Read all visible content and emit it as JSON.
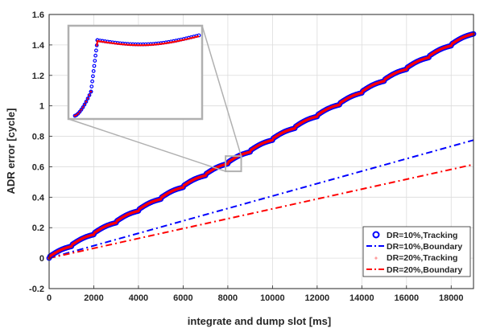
{
  "chart_data": {
    "type": "scatter",
    "title": "",
    "xlabel": "integrate and dump slot [ms]",
    "ylabel": "ADR error [cycle]",
    "xlim": [
      0,
      19000
    ],
    "ylim": [
      -0.2,
      1.6
    ],
    "xticks": [
      0,
      2000,
      4000,
      6000,
      8000,
      10000,
      12000,
      14000,
      16000,
      18000
    ],
    "xtick_labels": [
      "0",
      "2000",
      "4000",
      "6000",
      "8000",
      "10000",
      "12000",
      "14000",
      "16000",
      "18000"
    ],
    "yticks": [
      -0.2,
      0,
      0.2,
      0.4,
      0.6,
      0.8,
      1,
      1.2,
      1.4,
      1.6
    ],
    "ytick_labels": [
      "-0.2",
      "0",
      "0.2",
      "0.4",
      "0.6",
      "0.8",
      "1",
      "1.2",
      "1.4",
      "1.6"
    ],
    "grid": true,
    "legend_position": "bottom-right",
    "tracking_model": {
      "period_ms": 1000,
      "step_per_period": 0.0775,
      "period_fraction_of_rise": 0.03,
      "ripple_amplitude": 0.015,
      "x_start": 0,
      "x_end": 19000
    },
    "series": [
      {
        "name": "DR=10%,Tracking",
        "kind": "markers",
        "color": "#0000ff",
        "description_points": [
          [
            0,
            0.0
          ],
          [
            1000,
            0.078
          ],
          [
            2000,
            0.155
          ],
          [
            3000,
            0.233
          ],
          [
            4000,
            0.31
          ],
          [
            5000,
            0.388
          ],
          [
            6000,
            0.465
          ],
          [
            7000,
            0.543
          ],
          [
            8000,
            0.62
          ],
          [
            9000,
            0.698
          ],
          [
            10000,
            0.775
          ],
          [
            11000,
            0.853
          ],
          [
            12000,
            0.93
          ],
          [
            13000,
            1.008
          ],
          [
            14000,
            1.085
          ],
          [
            15000,
            1.163
          ],
          [
            16000,
            1.24
          ],
          [
            17000,
            1.318
          ],
          [
            18000,
            1.395
          ],
          [
            19000,
            1.48
          ]
        ]
      },
      {
        "name": "DR=10%,Boundary",
        "kind": "dashdot",
        "color": "#0000ff",
        "x": [
          0,
          19000
        ],
        "y": [
          0.0,
          0.775
        ]
      },
      {
        "name": "DR=20%,Tracking",
        "kind": "markers",
        "color": "#ff0000",
        "description_points": [
          [
            0,
            0.0
          ],
          [
            1000,
            0.078
          ],
          [
            2000,
            0.155
          ],
          [
            3000,
            0.233
          ],
          [
            4000,
            0.31
          ],
          [
            5000,
            0.388
          ],
          [
            6000,
            0.465
          ],
          [
            7000,
            0.543
          ],
          [
            8000,
            0.62
          ],
          [
            9000,
            0.698
          ],
          [
            10000,
            0.775
          ],
          [
            11000,
            0.853
          ],
          [
            12000,
            0.93
          ],
          [
            13000,
            1.008
          ],
          [
            14000,
            1.085
          ],
          [
            15000,
            1.163
          ],
          [
            16000,
            1.24
          ],
          [
            17000,
            1.318
          ],
          [
            18000,
            1.395
          ],
          [
            19000,
            1.48
          ]
        ]
      },
      {
        "name": "DR=20%,Boundary",
        "kind": "dashdot",
        "color": "#ff0000",
        "x": [
          0,
          19000
        ],
        "y": [
          0.0,
          0.615
        ]
      }
    ],
    "inset": {
      "source_xlim": [
        7900,
        8600
      ],
      "source_ylim": [
        0.57,
        0.67
      ]
    }
  }
}
